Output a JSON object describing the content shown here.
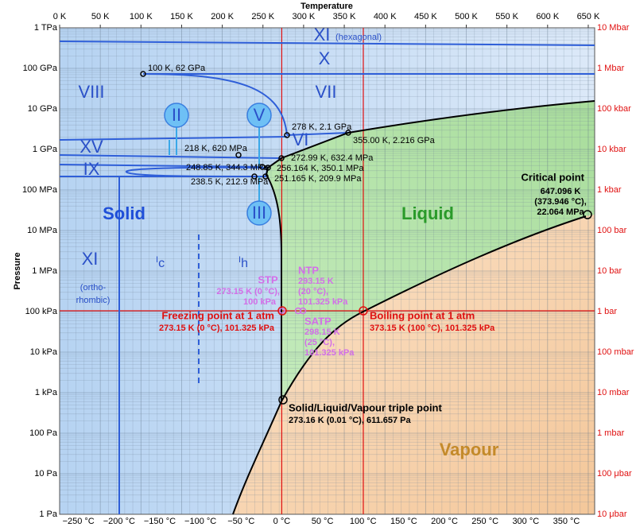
{
  "axes": {
    "top_title": "Temperature",
    "left_title": "Pressure",
    "kelvin": [
      "0 K",
      "50 K",
      "100 K",
      "150 K",
      "200 K",
      "250 K",
      "300 K",
      "350 K",
      "400 K",
      "450 K",
      "500 K",
      "550 K",
      "600 K",
      "650 K"
    ],
    "celsius": [
      "−250 °C",
      "−200 °C",
      "−150 °C",
      "−100 °C",
      "−50 °C",
      "0 °C",
      "50 °C",
      "100 °C",
      "150 °C",
      "200 °C",
      "250 °C",
      "300 °C",
      "350 °C"
    ],
    "pascal": [
      "1 Pa",
      "10 Pa",
      "100 Pa",
      "1 kPa",
      "10 kPa",
      "100 kPa",
      "1 MPa",
      "10 MPa",
      "100 MPa",
      "1 GPa",
      "10 GPa",
      "100 GPa",
      "1 TPa"
    ],
    "bar": [
      "10 μbar",
      "100 μbar",
      "1 mbar",
      "10 mbar",
      "100 mbar",
      "1 bar",
      "10 bar",
      "100 bar",
      "1 kbar",
      "10 kbar",
      "100 kbar",
      "1 Mbar",
      "10 Mbar"
    ]
  },
  "phases": {
    "xi_hex": "XI",
    "hexagonal": "(hexagonal)",
    "x": "X",
    "vii": "VII",
    "viii": "VIII",
    "ii": "II",
    "v": "V",
    "vi": "VI",
    "xv": "XV",
    "ix": "IX",
    "iii": "III",
    "solid": "Solid",
    "liquid": "Liquid",
    "vapour": "Vapour",
    "xi_orth": "XI",
    "ortho": "(ortho-",
    "rhombic": "rhombic)",
    "ic": {
      "main": "I",
      "sub": "c"
    },
    "ih": {
      "main": "I",
      "sub": "h"
    }
  },
  "points": [
    "100 K, 62 GPa",
    "278 K, 2.1 GPa",
    "355.00 K, 2.216 GPa",
    "218 K, 620 MPa",
    "272.99 K, 632.4 MPa",
    "248.85 K, 344.3 MPa",
    "256.164 K, 350.1 MPa",
    "238.5 K, 212.9 MPa",
    "251.165 K, 209.9 MPa"
  ],
  "critical_point": {
    "title": "Critical point",
    "lines": [
      "647.096 K",
      "(373.946 °C),",
      "22.064 MPa"
    ]
  },
  "stp": {
    "title": "STP",
    "lines": [
      "273.15 K (0 °C),",
      "100 kPa"
    ]
  },
  "ntp": {
    "title": "NTP",
    "lines": [
      "293.15 K",
      "(20 °C),",
      "101.325 kPa"
    ]
  },
  "satp": {
    "title": "SATP",
    "lines": [
      "298.15 K",
      "(25 °C),",
      "101.325 kPa"
    ]
  },
  "freezing": {
    "title": "Freezing point at 1 atm",
    "detail": "273.15 K (0 °C), 101.325 kPa"
  },
  "boiling": {
    "title": "Boiling point at 1 atm",
    "detail": "373.15 K (100 °C), 101.325 kPa"
  },
  "triple": {
    "title": "Solid/Liquid/Vapour triple point",
    "detail": "273.16 K (0.01 °C), 611.657 Pa"
  }
}
